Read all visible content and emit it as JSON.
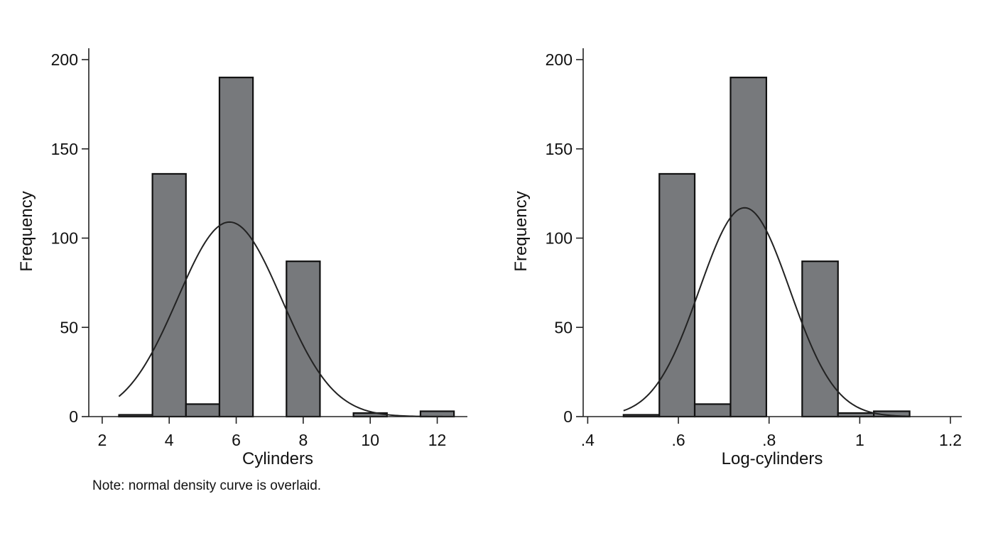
{
  "note": "Note: normal density curve is overlaid.",
  "colors": {
    "bar_fill": "#77797c",
    "bar_stroke": "#111111",
    "axis": "#222222",
    "curve": "#222222",
    "background": "#ffffff"
  },
  "chart_data": [
    {
      "type": "bar",
      "subtype": "histogram",
      "xlabel": "Cylinders",
      "ylabel": "Frequency",
      "xlim": [
        1.6,
        12.9
      ],
      "ylim": [
        0,
        200
      ],
      "x_ticks": [
        2,
        4,
        6,
        8,
        10,
        12
      ],
      "x_tick_labels": [
        "2",
        "4",
        "6",
        "8",
        "10",
        "12"
      ],
      "y_ticks": [
        0,
        50,
        100,
        150,
        200
      ],
      "y_tick_labels": [
        "0",
        "50",
        "100",
        "150",
        "200"
      ],
      "bins": [
        {
          "start": 2.5,
          "end": 3.5,
          "count": 1
        },
        {
          "start": 3.5,
          "end": 4.5,
          "count": 136
        },
        {
          "start": 4.5,
          "end": 5.5,
          "count": 7
        },
        {
          "start": 5.5,
          "end": 6.5,
          "count": 190
        },
        {
          "start": 6.5,
          "end": 7.5,
          "count": 0
        },
        {
          "start": 7.5,
          "end": 8.5,
          "count": 87
        },
        {
          "start": 8.5,
          "end": 9.5,
          "count": 0
        },
        {
          "start": 9.5,
          "end": 10.5,
          "count": 2
        },
        {
          "start": 10.5,
          "end": 11.5,
          "count": 0
        },
        {
          "start": 11.5,
          "end": 12.5,
          "count": 3
        }
      ],
      "density_curve": {
        "distribution": "normal",
        "mean": 5.8,
        "sd": 1.55,
        "peak": 109,
        "x_range": [
          2.5,
          12.5
        ]
      },
      "grid": false,
      "legend": "none"
    },
    {
      "type": "bar",
      "subtype": "histogram",
      "xlabel": "Log-cylinders",
      "ylabel": "Frequency",
      "xlim": [
        0.39,
        1.225
      ],
      "ylim": [
        0,
        200
      ],
      "x_ticks": [
        0.4,
        0.6,
        0.8,
        1.0,
        1.2
      ],
      "x_tick_labels": [
        ".4",
        ".6",
        ".8",
        "1",
        "1.2"
      ],
      "y_ticks": [
        0,
        50,
        100,
        150,
        200
      ],
      "y_tick_labels": [
        "0",
        "50",
        "100",
        "150",
        "200"
      ],
      "bins": [
        {
          "start": 0.479,
          "end": 0.558,
          "count": 1
        },
        {
          "start": 0.558,
          "end": 0.636,
          "count": 136
        },
        {
          "start": 0.636,
          "end": 0.715,
          "count": 7
        },
        {
          "start": 0.715,
          "end": 0.794,
          "count": 190
        },
        {
          "start": 0.794,
          "end": 0.873,
          "count": 0
        },
        {
          "start": 0.873,
          "end": 0.952,
          "count": 87
        },
        {
          "start": 0.952,
          "end": 1.031,
          "count": 2
        },
        {
          "start": 1.031,
          "end": 1.11,
          "count": 3
        }
      ],
      "density_curve": {
        "distribution": "normal",
        "mean": 0.746,
        "sd": 0.1,
        "peak": 117,
        "x_range": [
          0.479,
          1.11
        ]
      },
      "grid": false,
      "legend": "none"
    }
  ]
}
